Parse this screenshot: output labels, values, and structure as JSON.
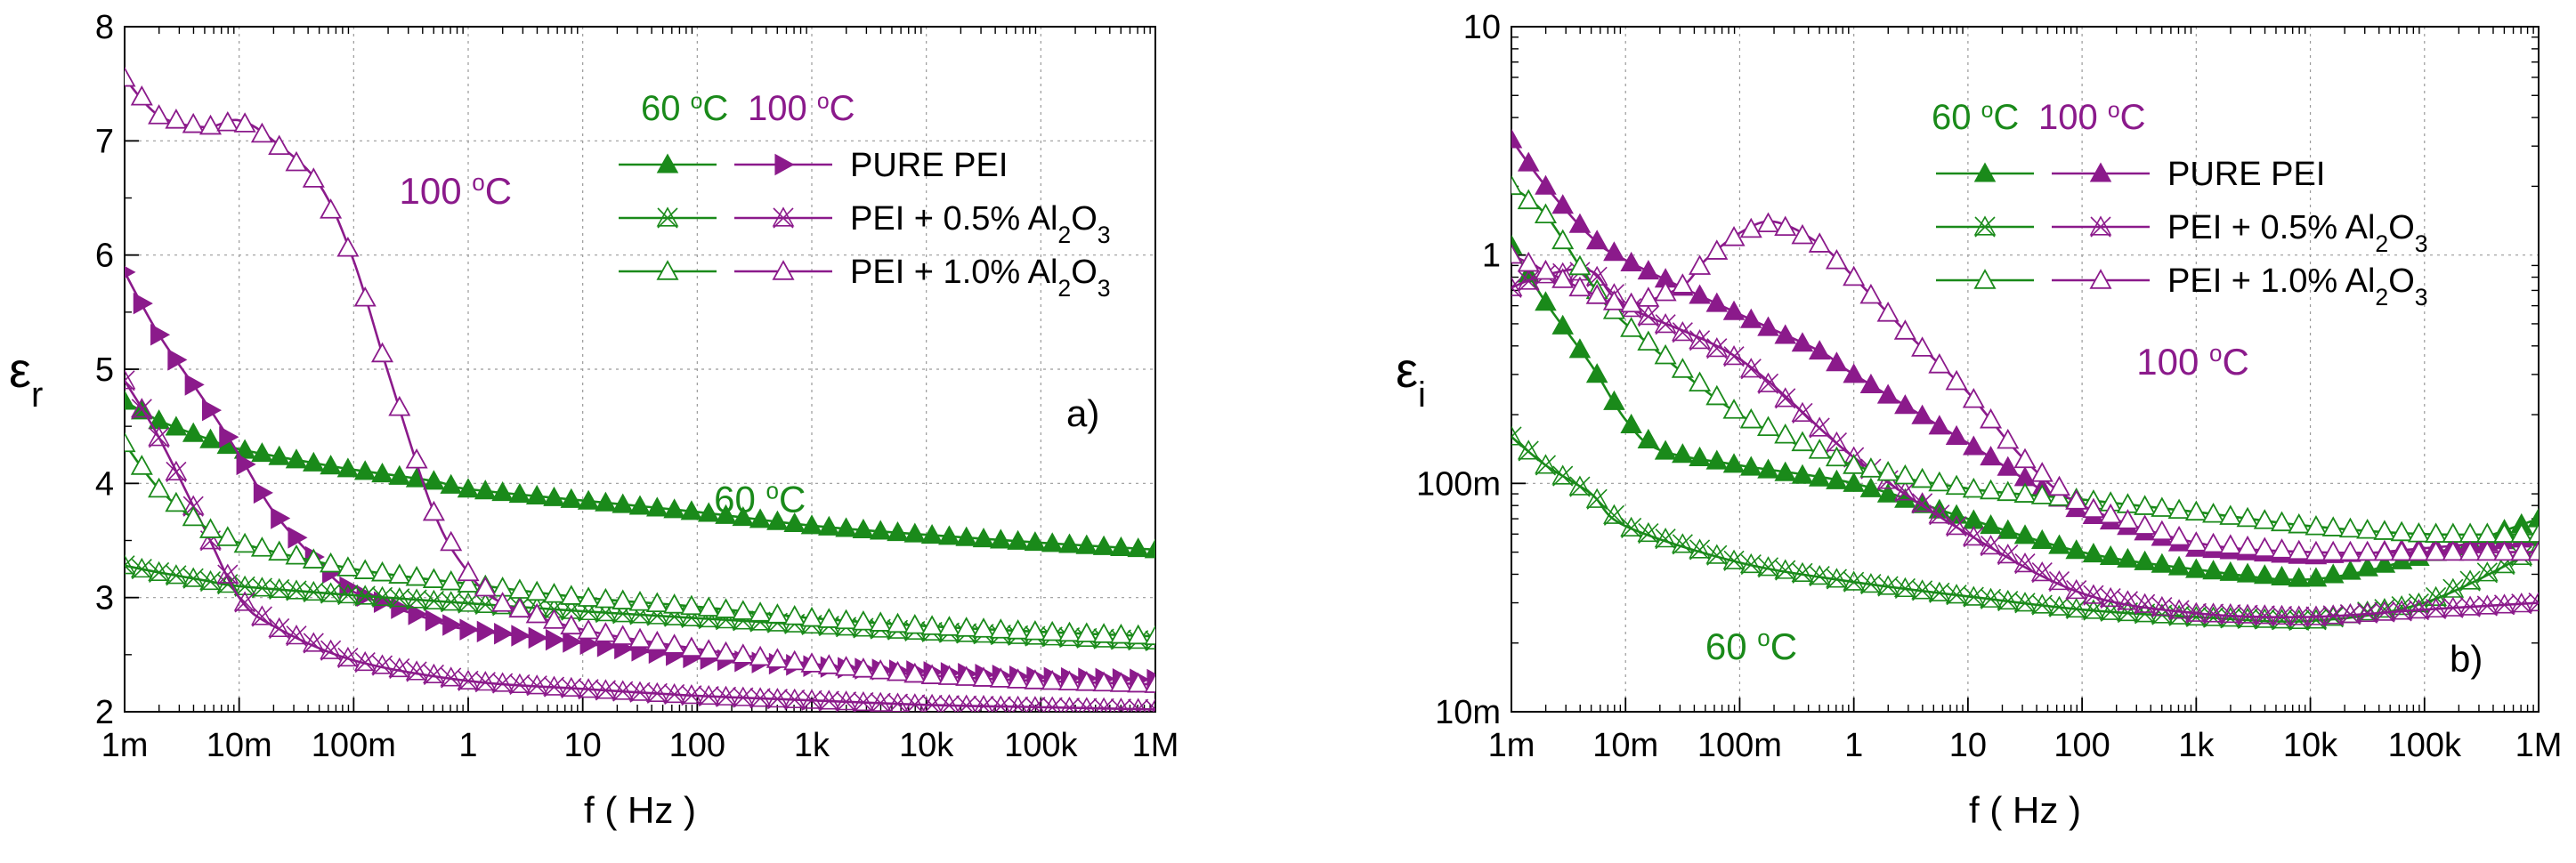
{
  "colors": {
    "green": "#1a8a1a",
    "purple": "#8b1a8b",
    "axis": "#000000",
    "grid": "#9a9a9a"
  },
  "chart_data": [
    {
      "type": "line",
      "panel_label": "a)",
      "xlabel": "f ( Hz )",
      "ylabel": "ε",
      "ylabel_sub": "r",
      "x_scale": "log",
      "y_scale": "linear",
      "xlim": [
        0.001,
        1000000
      ],
      "ylim": [
        2,
        8
      ],
      "x_ticks": [
        {
          "v": 0.001,
          "label": "1m"
        },
        {
          "v": 0.01,
          "label": "10m"
        },
        {
          "v": 0.1,
          "label": "100m"
        },
        {
          "v": 1,
          "label": "1"
        },
        {
          "v": 10,
          "label": "10"
        },
        {
          "v": 100,
          "label": "100"
        },
        {
          "v": 1000,
          "label": "1k"
        },
        {
          "v": 10000,
          "label": "10k"
        },
        {
          "v": 100000,
          "label": "100k"
        },
        {
          "v": 1000000,
          "label": "1M"
        }
      ],
      "y_ticks": [
        {
          "v": 2,
          "label": "2"
        },
        {
          "v": 3,
          "label": "3"
        },
        {
          "v": 4,
          "label": "4"
        },
        {
          "v": 5,
          "label": "5"
        },
        {
          "v": 6,
          "label": "6"
        },
        {
          "v": 7,
          "label": "7"
        },
        {
          "v": 8,
          "label": "8"
        }
      ],
      "grid": true,
      "legend": {
        "placement": "top-right",
        "headers": [
          "60 °C",
          "100 °C"
        ],
        "entries": [
          "PURE PEI",
          "PEI + 0.5% Al₂O₃",
          "PEI + 1.0% Al₂O₃"
        ]
      },
      "annotations": [
        {
          "text": "100 °C",
          "color": "purple",
          "x": 0.25,
          "y": 6.45
        },
        {
          "text": "60 °C",
          "color": "green",
          "x": 140,
          "y": 3.75
        }
      ],
      "series": [
        {
          "name": "PURE PEI 60 °C",
          "color": "green",
          "marker": "tri-up",
          "points": [
            [
              0.001,
              4.72
            ],
            [
              0.002,
              4.55
            ],
            [
              0.005,
              4.4
            ],
            [
              0.01,
              4.3
            ],
            [
              0.05,
              4.17
            ],
            [
              0.1,
              4.12
            ],
            [
              0.5,
              4.02
            ],
            [
              1,
              3.95
            ],
            [
              10,
              3.85
            ],
            [
              100,
              3.75
            ],
            [
              1000,
              3.63
            ],
            [
              10000,
              3.55
            ],
            [
              100000,
              3.48
            ],
            [
              1000000,
              3.42
            ]
          ]
        },
        {
          "name": "PURE PEI 100 °C",
          "color": "purple",
          "marker": "tri-right",
          "points": [
            [
              0.001,
              5.85
            ],
            [
              0.002,
              5.3
            ],
            [
              0.005,
              4.72
            ],
            [
              0.01,
              4.25
            ],
            [
              0.02,
              3.75
            ],
            [
              0.05,
              3.3
            ],
            [
              0.1,
              3.05
            ],
            [
              0.5,
              2.8
            ],
            [
              1,
              2.72
            ],
            [
              10,
              2.6
            ],
            [
              100,
              2.47
            ],
            [
              1000,
              2.4
            ],
            [
              10000,
              2.35
            ],
            [
              100000,
              2.3
            ],
            [
              1000000,
              2.28
            ]
          ]
        },
        {
          "name": "PEI + 0.5% Al2O3 60 °C",
          "color": "green",
          "marker": "x-tri",
          "points": [
            [
              0.001,
              3.28
            ],
            [
              0.002,
              3.22
            ],
            [
              0.005,
              3.15
            ],
            [
              0.01,
              3.1
            ],
            [
              0.1,
              3.02
            ],
            [
              1,
              2.95
            ],
            [
              10,
              2.88
            ],
            [
              100,
              2.82
            ],
            [
              1000,
              2.76
            ],
            [
              10000,
              2.7
            ],
            [
              100000,
              2.66
            ],
            [
              1000000,
              2.62
            ]
          ]
        },
        {
          "name": "PEI + 0.5% Al2O3 100 °C",
          "color": "purple",
          "marker": "x-tri",
          "points": [
            [
              0.001,
              4.9
            ],
            [
              0.002,
              4.4
            ],
            [
              0.005,
              3.6
            ],
            [
              0.01,
              3.0
            ],
            [
              0.02,
              2.75
            ],
            [
              0.1,
              2.45
            ],
            [
              1,
              2.27
            ],
            [
              10,
              2.2
            ],
            [
              100,
              2.14
            ],
            [
              1000,
              2.1
            ],
            [
              10000,
              2.06
            ],
            [
              100000,
              2.04
            ],
            [
              1000000,
              2.02
            ]
          ]
        },
        {
          "name": "PEI + 1.0% Al2O3 60 °C",
          "color": "green",
          "marker": "tri-open",
          "points": [
            [
              0.001,
              4.35
            ],
            [
              0.002,
              3.95
            ],
            [
              0.005,
              3.62
            ],
            [
              0.01,
              3.48
            ],
            [
              0.1,
              3.25
            ],
            [
              1,
              3.12
            ],
            [
              10,
              3.0
            ],
            [
              100,
              2.92
            ],
            [
              1000,
              2.82
            ],
            [
              10000,
              2.75
            ],
            [
              100000,
              2.7
            ],
            [
              1000000,
              2.66
            ]
          ]
        },
        {
          "name": "PEI + 1.0% Al2O3 100 °C",
          "color": "purple",
          "marker": "tri-open",
          "points": [
            [
              0.001,
              7.55
            ],
            [
              0.002,
              7.22
            ],
            [
              0.005,
              7.12
            ],
            [
              0.01,
              7.18
            ],
            [
              0.02,
              7.0
            ],
            [
              0.05,
              6.62
            ],
            [
              0.1,
              5.95
            ],
            [
              0.2,
              4.97
            ],
            [
              0.5,
              3.75
            ],
            [
              1,
              3.22
            ],
            [
              2,
              2.95
            ],
            [
              10,
              2.72
            ],
            [
              100,
              2.55
            ],
            [
              1000,
              2.42
            ],
            [
              10000,
              2.32
            ],
            [
              100000,
              2.27
            ],
            [
              1000000,
              2.24
            ]
          ]
        }
      ]
    },
    {
      "type": "line",
      "panel_label": "b)",
      "xlabel": "f ( Hz )",
      "ylabel": "ε",
      "ylabel_sub": "i",
      "x_scale": "log",
      "y_scale": "log",
      "xlim": [
        0.001,
        1000000
      ],
      "ylim": [
        0.01,
        10
      ],
      "x_ticks": [
        {
          "v": 0.001,
          "label": "1m"
        },
        {
          "v": 0.01,
          "label": "10m"
        },
        {
          "v": 0.1,
          "label": "100m"
        },
        {
          "v": 1,
          "label": "1"
        },
        {
          "v": 10,
          "label": "10"
        },
        {
          "v": 100,
          "label": "100"
        },
        {
          "v": 1000,
          "label": "1k"
        },
        {
          "v": 10000,
          "label": "10k"
        },
        {
          "v": 100000,
          "label": "100k"
        },
        {
          "v": 1000000,
          "label": "1M"
        }
      ],
      "y_ticks": [
        {
          "v": 0.01,
          "label": "10m"
        },
        {
          "v": 0.1,
          "label": "100m"
        },
        {
          "v": 1,
          "label": "1"
        },
        {
          "v": 10,
          "label": "10"
        }
      ],
      "grid": true,
      "legend": {
        "placement": "top-left",
        "headers": [
          "60 °C",
          "100 °C"
        ],
        "entries": [
          "PURE PEI",
          "PEI + 0.5% Al₂O₃",
          "PEI + 1.0% Al₂O₃"
        ]
      },
      "annotations": [
        {
          "text": "100 °C",
          "color": "purple",
          "x": 300,
          "y": 0.3
        },
        {
          "text": "60 °C",
          "color": "green",
          "x": 0.05,
          "y": 0.017
        }
      ],
      "series": [
        {
          "name": "PURE PEI 60 °C",
          "color": "green",
          "marker": "tri-up",
          "points": [
            [
              0.001,
              1.1
            ],
            [
              0.002,
              0.62
            ],
            [
              0.005,
              0.33
            ],
            [
              0.01,
              0.19
            ],
            [
              0.02,
              0.14
            ],
            [
              0.1,
              0.12
            ],
            [
              1,
              0.1
            ],
            [
              10,
              0.07
            ],
            [
              100,
              0.05
            ],
            [
              1000,
              0.042
            ],
            [
              10000,
              0.038
            ],
            [
              100000,
              0.048
            ],
            [
              1000000,
              0.07
            ]
          ]
        },
        {
          "name": "PURE PEI 100 °C",
          "color": "purple",
          "marker": "tri-up",
          "points": [
            [
              0.001,
              3.2
            ],
            [
              0.002,
              2.0
            ],
            [
              0.005,
              1.2
            ],
            [
              0.01,
              0.95
            ],
            [
              0.1,
              0.55
            ],
            [
              0.5,
              0.38
            ],
            [
              1,
              0.3
            ],
            [
              10,
              0.15
            ],
            [
              100,
              0.075
            ],
            [
              1000,
              0.052
            ],
            [
              10000,
              0.048
            ],
            [
              100000,
              0.052
            ],
            [
              1000000,
              0.058
            ]
          ]
        },
        {
          "name": "PEI + 0.5% Al2O3 60 °C",
          "color": "green",
          "marker": "x-tri",
          "points": [
            [
              0.001,
              0.16
            ],
            [
              0.002,
              0.12
            ],
            [
              0.005,
              0.09
            ],
            [
              0.01,
              0.065
            ],
            [
              0.1,
              0.045
            ],
            [
              1,
              0.037
            ],
            [
              10,
              0.032
            ],
            [
              100,
              0.028
            ],
            [
              1000,
              0.026
            ],
            [
              10000,
              0.025
            ],
            [
              100000,
              0.03
            ],
            [
              1000000,
              0.052
            ]
          ]
        },
        {
          "name": "PEI + 0.5% Al2O3 100 °C",
          "color": "purple",
          "marker": "x-tri",
          "points": [
            [
              0.001,
              0.72
            ],
            [
              0.002,
              0.82
            ],
            [
              0.005,
              0.85
            ],
            [
              0.01,
              0.6
            ],
            [
              0.1,
              0.35
            ],
            [
              1,
              0.13
            ],
            [
              10,
              0.06
            ],
            [
              100,
              0.033
            ],
            [
              1000,
              0.027
            ],
            [
              10000,
              0.026
            ],
            [
              100000,
              0.028
            ],
            [
              1000000,
              0.03
            ]
          ]
        },
        {
          "name": "PEI + 1.0% Al2O3 60 °C",
          "color": "green",
          "marker": "tri-open",
          "points": [
            [
              0.001,
              2.0
            ],
            [
              0.002,
              1.5
            ],
            [
              0.005,
              0.75
            ],
            [
              0.01,
              0.5
            ],
            [
              0.1,
              0.2
            ],
            [
              1,
              0.12
            ],
            [
              10,
              0.095
            ],
            [
              100,
              0.085
            ],
            [
              1000,
              0.075
            ],
            [
              10000,
              0.065
            ],
            [
              100000,
              0.06
            ],
            [
              1000000,
              0.06
            ]
          ]
        },
        {
          "name": "PEI + 1.0% Al2O3 100 °C",
          "color": "purple",
          "marker": "tri-open",
          "points": [
            [
              0.001,
              1.0
            ],
            [
              0.002,
              0.85
            ],
            [
              0.005,
              0.68
            ],
            [
              0.01,
              0.6
            ],
            [
              0.03,
              0.72
            ],
            [
              0.05,
              0.95
            ],
            [
              0.1,
              1.25
            ],
            [
              0.2,
              1.4
            ],
            [
              0.5,
              1.12
            ],
            [
              1,
              0.8
            ],
            [
              3,
              0.45
            ],
            [
              10,
              0.25
            ],
            [
              30,
              0.13
            ],
            [
              100,
              0.08
            ],
            [
              1000,
              0.055
            ],
            [
              10000,
              0.05
            ],
            [
              100000,
              0.05
            ],
            [
              1000000,
              0.05
            ]
          ]
        }
      ]
    }
  ]
}
